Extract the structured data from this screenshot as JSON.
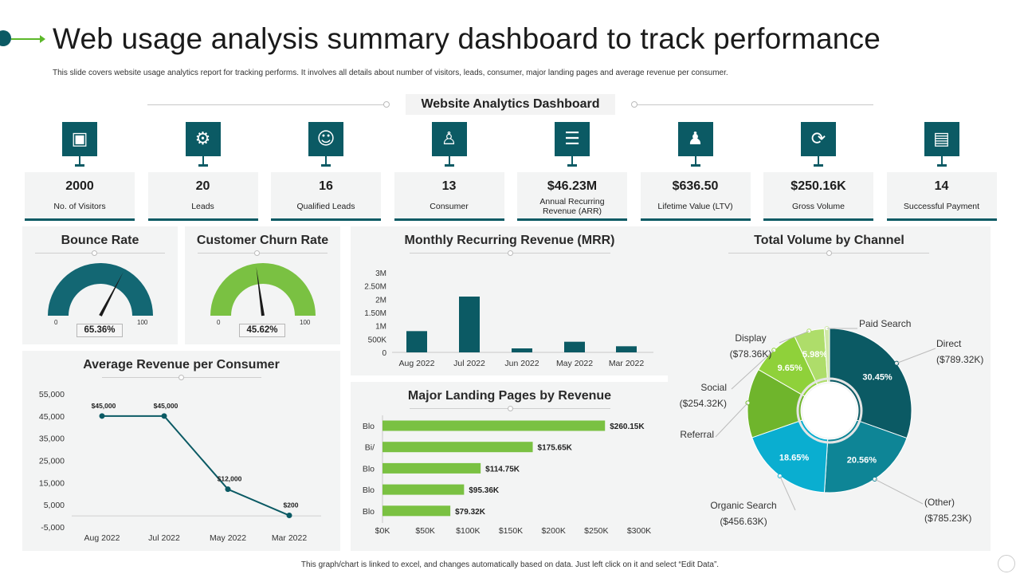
{
  "header": {
    "title": "Web usage analysis summary dashboard to track performance",
    "subtitle": "This slide covers website usage analytics report for tracking performs. It involves all details about  number of visitors, leads, consumer, major landing pages and average revenue per consumer.",
    "section_title": "Website Analytics Dashboard"
  },
  "kpis": [
    {
      "value": "2000",
      "label": "No. of Visitors",
      "icon": "browser-window-icon"
    },
    {
      "value": "20",
      "label": "Leads",
      "icon": "team-gear-icon"
    },
    {
      "value": "16",
      "label": "Qualified Leads",
      "icon": "group-people-icon"
    },
    {
      "value": "13",
      "label": "Consumer",
      "icon": "hand-user-icon"
    },
    {
      "value": "$46.23M",
      "label": "Annual Recurring Revenue (ARR)",
      "icon": "document-list-icon"
    },
    {
      "value": "$636.50",
      "label": "Lifetime Value (LTV)",
      "icon": "hand-person-icon"
    },
    {
      "value": "$250.16K",
      "label": "Gross Volume",
      "icon": "cycle-chart-icon"
    },
    {
      "value": "14",
      "label": "Successful Payment",
      "icon": "payment-card-icon"
    }
  ],
  "bounce_rate": {
    "title": "Bounce Rate",
    "min_label": "0",
    "max_label": "100",
    "value_label": "65.36%",
    "value": 65.36,
    "color": "#136773"
  },
  "churn_rate": {
    "title": "Customer Churn Rate",
    "min_label": "0",
    "max_label": "100",
    "value_label": "45.62%",
    "value": 45.62,
    "color": "#7ac142"
  },
  "footnote": "This graph/chart is linked to excel, and changes automatically based on data. Just left click on it and select “Edit Data”.",
  "chart_data": [
    {
      "type": "line",
      "title": "Average Revenue per Consumer",
      "categories": [
        "Aug 2022",
        "Jul 2022",
        "May 2022",
        "Mar 2022"
      ],
      "values": [
        45000,
        45000,
        12000,
        200
      ],
      "data_labels": [
        "$45,000",
        "$45,000",
        "$12,000",
        "$200"
      ],
      "y_ticks": [
        "55,000",
        "45,000",
        "35,000",
        "25,000",
        "15,000",
        "5,000",
        "-5,000"
      ],
      "ylim": [
        -5000,
        55000
      ],
      "color": "#0b5a64"
    },
    {
      "type": "bar",
      "title": "Monthly Recurring Revenue (MRR)",
      "categories": [
        "Aug 2022",
        "Jul 2022",
        "Jun 2022",
        "May 2022",
        "Mar 2022"
      ],
      "values": [
        800000,
        2100000,
        150000,
        400000,
        230000
      ],
      "y_ticks": [
        "0",
        "500K",
        "1M",
        "1.50M",
        "2M",
        "2.50M",
        "3M"
      ],
      "ylim": [
        0,
        3000000
      ],
      "color": "#0b5a64"
    },
    {
      "type": "bar",
      "orientation": "horizontal",
      "title": "Major Landing Pages by Revenue",
      "categories": [
        "Blo",
        "Bi/",
        "Blo",
        "Blo",
        "Blo"
      ],
      "values": [
        260150,
        175650,
        114750,
        95360,
        79320
      ],
      "data_labels": [
        "$260.15K",
        "$175.65K",
        "$114.75K",
        "$95.36K",
        "$79.32K"
      ],
      "x_ticks": [
        "$0K",
        "$50K",
        "$100K",
        "$150K",
        "$200K",
        "$250K",
        "$300K"
      ],
      "xlim": [
        0,
        300000
      ],
      "color": "#7ac142"
    },
    {
      "type": "pie",
      "title": "Total Volume by Channel",
      "series": [
        {
          "name": "Direct",
          "amount": "($789.32K)",
          "pct": 30.45,
          "pct_label": "30.45%",
          "color": "#0b5a64"
        },
        {
          "name": "(Other)",
          "amount": "($785.23K)",
          "pct": 20.56,
          "pct_label": "20.56%",
          "color": "#0e8596"
        },
        {
          "name": "Organic Search",
          "amount": "($456.63K)",
          "pct": 18.65,
          "pct_label": "18.65%",
          "color": "#0aaed0"
        },
        {
          "name": "Referral",
          "amount": "",
          "pct": 13.67,
          "pct_label": "",
          "color": "#6fb52c"
        },
        {
          "name": "Social",
          "amount": "($254.32K)",
          "pct": 9.65,
          "pct_label": "9.65%",
          "color": "#8fd13a"
        },
        {
          "name": "Display",
          "amount": "($78.36K)",
          "pct": 5.98,
          "pct_label": "5.98%",
          "color": "#aedd6a"
        },
        {
          "name": "Paid Search",
          "amount": "",
          "pct": 1.04,
          "pct_label": "",
          "color": "#cfe8a8"
        }
      ]
    }
  ]
}
